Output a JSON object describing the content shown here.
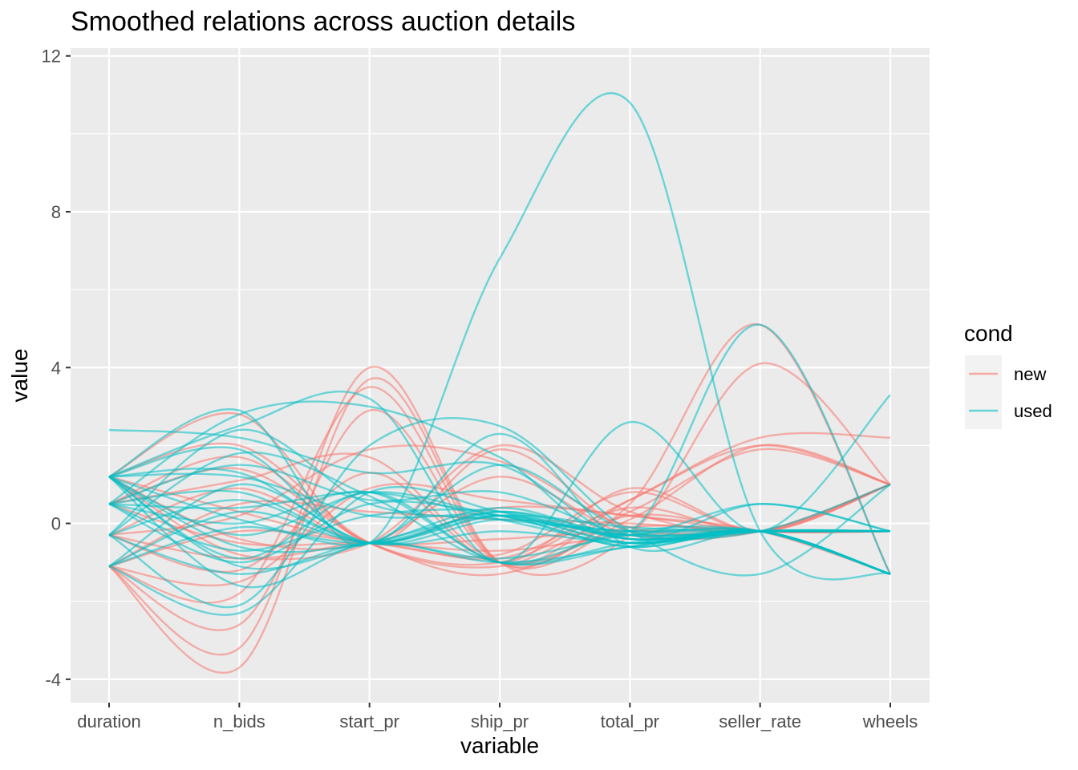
{
  "chart_data": {
    "type": "line",
    "title": "Smoothed relations across auction details",
    "xlabel": "variable",
    "ylabel": "value",
    "categories": [
      "duration",
      "n_bids",
      "start_pr",
      "ship_pr",
      "total_pr",
      "seller_rate",
      "wheels"
    ],
    "ylim": [
      -4.6,
      12.2
    ],
    "yticks": [
      -4,
      0,
      4,
      8,
      12
    ],
    "grid": true,
    "panel_background": "#ebebeb",
    "legend": {
      "title": "cond",
      "placement": "right",
      "entries": [
        {
          "name": "new",
          "color": "#f8766d"
        },
        {
          "name": "used",
          "color": "#00bfc4"
        }
      ]
    },
    "series": [
      {
        "group": "new",
        "values": [
          -1.1,
          -3.7,
          3.7,
          -1.0,
          0.1,
          2.0,
          1.0
        ]
      },
      {
        "group": "new",
        "values": [
          -1.1,
          -3.2,
          4.0,
          -1.0,
          -0.3,
          4.1,
          1.0
        ]
      },
      {
        "group": "new",
        "values": [
          -1.1,
          -2.6,
          2.9,
          -1.0,
          0.6,
          2.2,
          2.2
        ]
      },
      {
        "group": "new",
        "values": [
          -1.1,
          -1.8,
          3.5,
          -1.0,
          0.3,
          1.9,
          1.0
        ]
      },
      {
        "group": "new",
        "values": [
          1.2,
          2.8,
          -0.5,
          1.9,
          -0.2,
          -0.2,
          1.0
        ]
      },
      {
        "group": "new",
        "values": [
          1.2,
          2.0,
          -0.5,
          -1.1,
          0.2,
          -0.2,
          -0.2
        ]
      },
      {
        "group": "new",
        "values": [
          0.5,
          1.4,
          -0.5,
          -1.3,
          0.5,
          5.1,
          -1.3
        ]
      },
      {
        "group": "new",
        "values": [
          -0.3,
          -1.2,
          1.3,
          -1.0,
          0.9,
          -0.2,
          1.0
        ]
      },
      {
        "group": "new",
        "values": [
          -0.3,
          0.9,
          -0.5,
          0.4,
          0.2,
          -0.2,
          -0.2
        ]
      },
      {
        "group": "new",
        "values": [
          0.5,
          -0.5,
          -0.5,
          -0.7,
          -0.3,
          -0.2,
          1.0
        ]
      },
      {
        "group": "new",
        "values": [
          -1.1,
          0.5,
          0.3,
          0.1,
          0.0,
          -0.2,
          -0.2
        ]
      },
      {
        "group": "new",
        "values": [
          1.2,
          -0.8,
          -0.5,
          -0.9,
          0.4,
          -0.2,
          1.0
        ]
      },
      {
        "group": "new",
        "values": [
          -0.3,
          0.2,
          1.9,
          1.6,
          -0.1,
          -0.2,
          -0.2
        ]
      },
      {
        "group": "new",
        "values": [
          0.5,
          1.7,
          -0.5,
          -1.0,
          0.6,
          2.0,
          1.0
        ]
      },
      {
        "group": "new",
        "values": [
          -1.1,
          -1.5,
          0.9,
          0.6,
          0.2,
          -0.2,
          -1.3
        ]
      },
      {
        "group": "new",
        "values": [
          1.2,
          0.3,
          -0.5,
          -0.4,
          -0.2,
          -0.2,
          -0.2
        ]
      },
      {
        "group": "new",
        "values": [
          -0.3,
          -0.9,
          -0.5,
          2.0,
          0.3,
          -0.2,
          1.0
        ]
      },
      {
        "group": "new",
        "values": [
          0.5,
          1.1,
          1.7,
          -1.0,
          -0.1,
          -0.2,
          -0.2
        ]
      },
      {
        "group": "new",
        "values": [
          -1.1,
          -0.2,
          -0.5,
          -0.8,
          0.8,
          -0.2,
          1.0
        ]
      },
      {
        "group": "new",
        "values": [
          1.2,
          -0.4,
          -0.5,
          1.2,
          -0.3,
          -0.2,
          -0.2
        ]
      },
      {
        "group": "used",
        "values": [
          1.2,
          2.9,
          -0.5,
          6.8,
          10.8,
          -0.2,
          -1.3
        ]
      },
      {
        "group": "used",
        "values": [
          1.2,
          2.5,
          3.2,
          -1.0,
          2.6,
          -0.2,
          3.3
        ]
      },
      {
        "group": "used",
        "values": [
          0.5,
          2.8,
          3.0,
          1.7,
          -0.2,
          5.1,
          -1.3
        ]
      },
      {
        "group": "used",
        "values": [
          -0.3,
          -2.1,
          2.0,
          2.5,
          -0.2,
          -1.3,
          1.0
        ]
      },
      {
        "group": "used",
        "values": [
          2.4,
          2.2,
          1.3,
          1.5,
          -0.4,
          0.5,
          -0.2
        ]
      },
      {
        "group": "used",
        "values": [
          -1.1,
          -2.3,
          0.8,
          0.3,
          -0.5,
          -0.2,
          -1.3
        ]
      },
      {
        "group": "used",
        "values": [
          1.2,
          -1.6,
          -0.5,
          -1.0,
          -0.6,
          -0.2,
          -0.2
        ]
      },
      {
        "group": "used",
        "values": [
          0.5,
          1.5,
          0.6,
          0.8,
          -0.3,
          -0.2,
          1.0
        ]
      },
      {
        "group": "used",
        "values": [
          -0.3,
          0.6,
          -0.5,
          0.2,
          -0.1,
          -0.2,
          -0.2
        ]
      },
      {
        "group": "used",
        "values": [
          1.2,
          -0.3,
          0.8,
          0.2,
          -0.2,
          -0.2,
          -1.3
        ]
      },
      {
        "group": "used",
        "values": [
          -1.1,
          1.0,
          -0.5,
          -0.2,
          -0.5,
          -0.2,
          -0.2
        ]
      },
      {
        "group": "used",
        "values": [
          0.5,
          -1.0,
          0.5,
          0.2,
          -0.6,
          -0.2,
          -1.3
        ]
      },
      {
        "group": "used",
        "values": [
          1.2,
          0.1,
          -0.5,
          0.3,
          -0.3,
          -0.2,
          -0.2
        ]
      },
      {
        "group": "used",
        "values": [
          -0.3,
          1.8,
          0.7,
          -1.0,
          -0.2,
          -0.2,
          -1.3
        ]
      },
      {
        "group": "used",
        "values": [
          1.2,
          -0.6,
          -0.5,
          0.4,
          -0.4,
          -0.2,
          -0.2
        ]
      },
      {
        "group": "used",
        "values": [
          0.5,
          0.4,
          0.8,
          0.1,
          -0.5,
          -0.2,
          -1.3
        ]
      },
      {
        "group": "used",
        "values": [
          -1.1,
          -0.1,
          -0.5,
          1.5,
          -0.2,
          -0.2,
          -0.2
        ]
      },
      {
        "group": "used",
        "values": [
          1.2,
          1.2,
          0.2,
          0.2,
          -0.6,
          -0.2,
          -1.3
        ]
      },
      {
        "group": "used",
        "values": [
          -0.3,
          -1.3,
          -0.5,
          -0.9,
          -0.3,
          -0.2,
          -0.2
        ]
      },
      {
        "group": "used",
        "values": [
          0.5,
          0.8,
          -0.5,
          0.3,
          -0.4,
          -0.2,
          -1.3
        ]
      },
      {
        "group": "used",
        "values": [
          1.2,
          -0.9,
          0.8,
          -1.0,
          -0.5,
          -0.2,
          -0.2
        ]
      },
      {
        "group": "used",
        "values": [
          -1.1,
          0.3,
          -0.5,
          0.2,
          -0.3,
          0.5,
          -0.2
        ]
      },
      {
        "group": "used",
        "values": [
          1.2,
          1.9,
          -0.5,
          2.3,
          -0.6,
          -0.2,
          -1.3
        ]
      },
      {
        "group": "used",
        "values": [
          0.5,
          -0.7,
          0.2,
          0.3,
          -0.4,
          -0.2,
          -0.2
        ]
      },
      {
        "group": "used",
        "values": [
          -0.3,
          2.4,
          0.5,
          0.1,
          -0.2,
          -0.2,
          -1.3
        ]
      },
      {
        "group": "used",
        "values": [
          1.2,
          -1.1,
          -0.5,
          0.2,
          -0.5,
          -0.2,
          -0.2
        ]
      },
      {
        "group": "used",
        "values": [
          0.5,
          0.0,
          0.8,
          -1.0,
          -0.6,
          -0.2,
          -1.3
        ]
      },
      {
        "group": "used",
        "values": [
          1.2,
          1.3,
          -0.5,
          0.1,
          -0.3,
          -0.2,
          -0.2
        ]
      }
    ]
  }
}
